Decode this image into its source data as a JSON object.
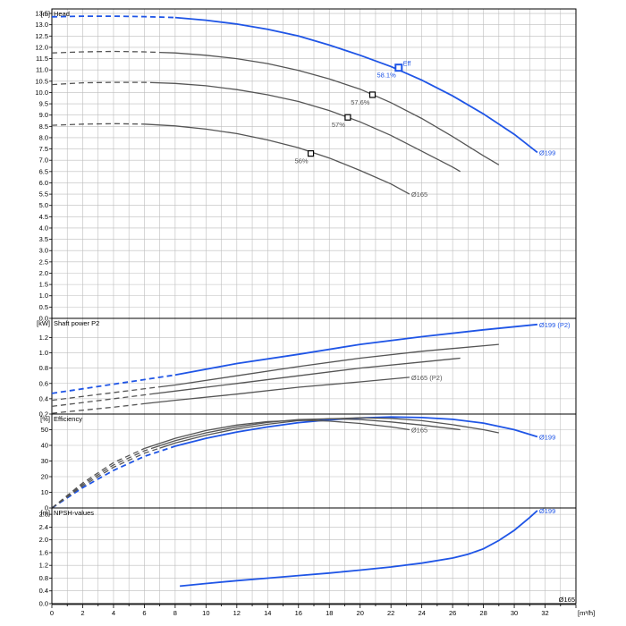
{
  "chart_data": {
    "type": "line",
    "x_axis": {
      "unit": "[m³/h]",
      "min": 0,
      "max": 34,
      "ticks": [
        0,
        2,
        4,
        6,
        8,
        10,
        12,
        14,
        16,
        18,
        20,
        22,
        24,
        26,
        28,
        30,
        32
      ]
    },
    "colors": {
      "blue": "#1f55e6",
      "gray": "#555555"
    },
    "panels": [
      {
        "id": "head",
        "title": "Head",
        "unit": "[m]",
        "ylim": [
          0,
          13.7
        ],
        "ytick_step": 0.5,
        "ytick_max": 13.5,
        "ytick_decimals": 1,
        "series": [
          {
            "name": "Ø199",
            "color": "blue",
            "dashed_until": 8,
            "label": "Ø199",
            "points": [
              [
                0,
                13.35
              ],
              [
                2,
                13.38
              ],
              [
                4,
                13.38
              ],
              [
                6,
                13.36
              ],
              [
                8,
                13.32
              ],
              [
                10,
                13.2
              ],
              [
                12,
                13.03
              ],
              [
                14,
                12.8
              ],
              [
                16,
                12.5
              ],
              [
                18,
                12.1
              ],
              [
                20,
                11.65
              ],
              [
                22,
                11.15
              ],
              [
                24,
                10.55
              ],
              [
                26,
                9.85
              ],
              [
                28,
                9.05
              ],
              [
                30,
                8.15
              ],
              [
                31.5,
                7.35
              ]
            ]
          },
          {
            "name": "",
            "color": "gray",
            "dashed_until": 7,
            "points": [
              [
                0,
                11.75
              ],
              [
                2,
                11.8
              ],
              [
                4,
                11.82
              ],
              [
                6,
                11.8
              ],
              [
                8,
                11.75
              ],
              [
                10,
                11.65
              ],
              [
                12,
                11.5
              ],
              [
                14,
                11.28
              ],
              [
                16,
                10.98
              ],
              [
                18,
                10.6
              ],
              [
                20,
                10.15
              ],
              [
                22,
                9.55
              ],
              [
                24,
                8.85
              ],
              [
                26,
                8.05
              ],
              [
                28,
                7.2
              ],
              [
                29,
                6.8
              ]
            ]
          },
          {
            "name": "",
            "color": "gray",
            "dashed_until": 6.5,
            "points": [
              [
                0,
                10.35
              ],
              [
                2,
                10.43
              ],
              [
                4,
                10.45
              ],
              [
                6,
                10.45
              ],
              [
                8,
                10.4
              ],
              [
                10,
                10.3
              ],
              [
                12,
                10.13
              ],
              [
                14,
                9.9
              ],
              [
                16,
                9.6
              ],
              [
                18,
                9.2
              ],
              [
                20,
                8.7
              ],
              [
                22,
                8.1
              ],
              [
                24,
                7.4
              ],
              [
                26,
                6.7
              ],
              [
                26.5,
                6.5
              ]
            ]
          },
          {
            "name": "Ø165",
            "color": "gray",
            "dashed_until": 6,
            "label": "Ø165",
            "points": [
              [
                0,
                8.55
              ],
              [
                2,
                8.6
              ],
              [
                4,
                8.62
              ],
              [
                6,
                8.6
              ],
              [
                8,
                8.52
              ],
              [
                10,
                8.38
              ],
              [
                12,
                8.18
              ],
              [
                14,
                7.9
              ],
              [
                16,
                7.55
              ],
              [
                18,
                7.1
              ],
              [
                20,
                6.55
              ],
              [
                22,
                5.95
              ],
              [
                23.2,
                5.5
              ]
            ]
          }
        ],
        "markers": [
          {
            "x": 22.5,
            "y": 11.1,
            "label": "58.1%",
            "color": "blue",
            "extra": "Eff"
          },
          {
            "x": 20.8,
            "y": 9.9,
            "label": "57.6%",
            "color": "gray"
          },
          {
            "x": 19.2,
            "y": 8.9,
            "label": "57%",
            "color": "gray"
          },
          {
            "x": 16.8,
            "y": 7.3,
            "label": "56%",
            "color": "gray"
          }
        ]
      },
      {
        "id": "power",
        "title": "Shaft power P2",
        "unit": "[kW]",
        "ylim": [
          0.2,
          1.45
        ],
        "ytick_step": 0.2,
        "ytick_min": 0.2,
        "ytick_max": 1.2,
        "ytick_decimals": 1,
        "series": [
          {
            "name": "Ø199 (P2)",
            "color": "blue",
            "dashed_until": 8,
            "label": "Ø199 (P2)",
            "points": [
              [
                0,
                0.47
              ],
              [
                4,
                0.59
              ],
              [
                8,
                0.71
              ],
              [
                12,
                0.86
              ],
              [
                16,
                0.98
              ],
              [
                20,
                1.11
              ],
              [
                24,
                1.21
              ],
              [
                28,
                1.3
              ],
              [
                31.5,
                1.37
              ]
            ]
          },
          {
            "name": "",
            "color": "gray",
            "dashed_until": 7,
            "points": [
              [
                0,
                0.38
              ],
              [
                4,
                0.48
              ],
              [
                8,
                0.58
              ],
              [
                12,
                0.7
              ],
              [
                16,
                0.82
              ],
              [
                20,
                0.93
              ],
              [
                24,
                1.02
              ],
              [
                29,
                1.11
              ]
            ]
          },
          {
            "name": "",
            "color": "gray",
            "dashed_until": 6.5,
            "points": [
              [
                0,
                0.3
              ],
              [
                4,
                0.4
              ],
              [
                8,
                0.5
              ],
              [
                12,
                0.6
              ],
              [
                16,
                0.7
              ],
              [
                20,
                0.8
              ],
              [
                24,
                0.88
              ],
              [
                26.5,
                0.93
              ]
            ]
          },
          {
            "name": "Ø165 (P2)",
            "color": "gray",
            "dashed_until": 6,
            "label": "Ø165 (P2)",
            "points": [
              [
                0,
                0.21
              ],
              [
                4,
                0.29
              ],
              [
                8,
                0.38
              ],
              [
                12,
                0.46
              ],
              [
                16,
                0.55
              ],
              [
                20,
                0.62
              ],
              [
                23.2,
                0.68
              ]
            ]
          }
        ]
      },
      {
        "id": "eff",
        "title": "Efficiency",
        "unit": "[%]",
        "ylim": [
          0,
          60
        ],
        "ytick_step": 10,
        "ytick_max": 50,
        "ytick_decimals": 0,
        "series": [
          {
            "name": "Ø199",
            "color": "blue",
            "dashed_until": 8,
            "label": "Ø199",
            "points": [
              [
                0,
                0
              ],
              [
                2,
                13
              ],
              [
                4,
                24
              ],
              [
                6,
                33
              ],
              [
                8,
                39.5
              ],
              [
                10,
                44.5
              ],
              [
                12,
                48.5
              ],
              [
                14,
                51.8
              ],
              [
                16,
                54.5
              ],
              [
                18,
                56.3
              ],
              [
                20,
                57.5
              ],
              [
                22,
                58.1
              ],
              [
                24,
                57.8
              ],
              [
                26,
                56.6
              ],
              [
                28,
                54.2
              ],
              [
                30,
                50
              ],
              [
                31.5,
                45.5
              ]
            ]
          },
          {
            "name": "",
            "color": "gray",
            "dashed_until": 7,
            "points": [
              [
                0,
                0
              ],
              [
                2,
                14
              ],
              [
                4,
                26
              ],
              [
                6,
                35
              ],
              [
                8,
                41.5
              ],
              [
                10,
                46.5
              ],
              [
                12,
                50.5
              ],
              [
                14,
                53.5
              ],
              [
                16,
                55.8
              ],
              [
                18,
                57
              ],
              [
                20,
                57.6
              ],
              [
                22,
                57.2
              ],
              [
                24,
                55.8
              ],
              [
                26,
                53.2
              ],
              [
                28,
                50
              ],
              [
                29,
                48
              ]
            ]
          },
          {
            "name": "",
            "color": "gray",
            "dashed_until": 6.5,
            "points": [
              [
                0,
                0
              ],
              [
                2,
                15
              ],
              [
                4,
                27.5
              ],
              [
                6,
                36.5
              ],
              [
                8,
                43
              ],
              [
                10,
                48
              ],
              [
                12,
                51.8
              ],
              [
                14,
                54.7
              ],
              [
                16,
                56.5
              ],
              [
                18,
                57
              ],
              [
                20,
                56.5
              ],
              [
                22,
                55
              ],
              [
                24,
                53
              ],
              [
                26.5,
                50
              ]
            ]
          },
          {
            "name": "Ø165",
            "color": "gray",
            "dashed_until": 6,
            "label": "Ø165",
            "points": [
              [
                0,
                0
              ],
              [
                2,
                16
              ],
              [
                4,
                29
              ],
              [
                6,
                38
              ],
              [
                8,
                44.5
              ],
              [
                10,
                49.5
              ],
              [
                12,
                53
              ],
              [
                14,
                55.2
              ],
              [
                16,
                56
              ],
              [
                18,
                55.5
              ],
              [
                20,
                54
              ],
              [
                22,
                51.8
              ],
              [
                23.2,
                50
              ]
            ]
          }
        ]
      },
      {
        "id": "npsh",
        "title": "NPSH-values",
        "unit": "[m]",
        "ylim": [
          0,
          3.0
        ],
        "ytick_step": 0.4,
        "ytick_max": 2.8,
        "ytick_decimals": 1,
        "series": [
          {
            "name": "Ø199",
            "color": "blue",
            "dashed_until": null,
            "label": "Ø199",
            "points": [
              [
                8.3,
                0.55
              ],
              [
                10,
                0.63
              ],
              [
                12,
                0.72
              ],
              [
                14,
                0.8
              ],
              [
                16,
                0.88
              ],
              [
                18,
                0.96
              ],
              [
                20,
                1.05
              ],
              [
                22,
                1.15
              ],
              [
                24,
                1.27
              ],
              [
                26,
                1.43
              ],
              [
                27,
                1.55
              ],
              [
                28,
                1.72
              ],
              [
                29,
                1.98
              ],
              [
                30,
                2.3
              ],
              [
                31,
                2.7
              ],
              [
                31.5,
                2.92
              ]
            ]
          }
        ],
        "bottom_label": "Ø165"
      }
    ]
  }
}
